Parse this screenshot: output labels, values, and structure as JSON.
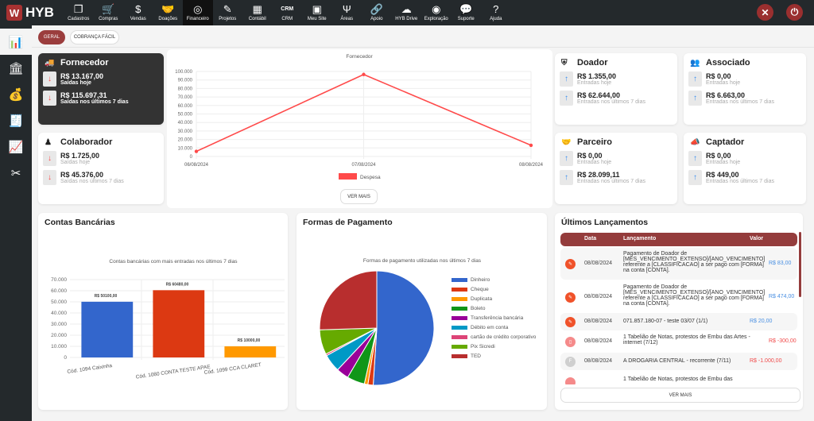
{
  "app": {
    "logo": "HYB"
  },
  "nav": [
    {
      "label": "Cadastros",
      "icon": "copy-icon",
      "glyph": "❐"
    },
    {
      "label": "Compras",
      "icon": "cart-icon",
      "glyph": "🛒"
    },
    {
      "label": "Vendas",
      "icon": "dollar-icon",
      "glyph": "$"
    },
    {
      "label": "Doações",
      "icon": "handshake-icon",
      "glyph": "🤝"
    },
    {
      "label": "Financeiro",
      "icon": "target-gear-icon",
      "glyph": "◎",
      "active": true
    },
    {
      "label": "Projetos",
      "icon": "pencil-icon",
      "glyph": "✎"
    },
    {
      "label": "Contábil",
      "icon": "calculator-icon",
      "glyph": "▦"
    },
    {
      "label": "CRM",
      "icon": "crm-icon",
      "glyph": "CRM"
    },
    {
      "label": "Meu Site",
      "icon": "monitor-icon",
      "glyph": "▣"
    },
    {
      "label": "Áreas",
      "icon": "areas-icon",
      "glyph": "Ψ"
    },
    {
      "label": "Apoio",
      "icon": "link-icon",
      "glyph": "🔗"
    },
    {
      "label": "HYB Drive",
      "icon": "cloud-upload-icon",
      "glyph": "☁"
    },
    {
      "label": "Exploração",
      "icon": "bullseye-icon",
      "glyph": "◉"
    },
    {
      "label": "Suporte",
      "icon": "chat-icon",
      "glyph": "💬"
    },
    {
      "label": "Ajuda",
      "icon": "question-icon",
      "glyph": "?"
    }
  ],
  "tabs": {
    "geral": "GERAL",
    "cobranca": "COBRANÇA FÁCIL"
  },
  "cards": {
    "fornecedor": {
      "title": "Fornecedor",
      "a1": "R$ 13.167,00",
      "l1": "Saídas hoje",
      "a2": "R$ 115.697,31",
      "l2": "Saídas nos últimos 7 dias"
    },
    "colaborador": {
      "title": "Colaborador",
      "a1": "R$ 1.725,00",
      "l1": "Saídas hoje",
      "a2": "R$ 45.376,00",
      "l2": "Saídas nos últimos 7 dias"
    },
    "doador": {
      "title": "Doador",
      "a1": "R$ 1.355,00",
      "l1": "Entradas hoje",
      "a2": "R$ 62.644,00",
      "l2": "Entradas nos últimos 7 dias"
    },
    "associado": {
      "title": "Associado",
      "a1": "R$ 0,00",
      "l1": "Entradas hoje",
      "a2": "R$ 6.663,00",
      "l2": "Entradas nos últimos 7 dias"
    },
    "parceiro": {
      "title": "Parceiro",
      "a1": "R$ 0,00",
      "l1": "Entradas hoje",
      "a2": "R$ 28.099,11",
      "l2": "Entradas nos últimos 7 dias"
    },
    "captador": {
      "title": "Captador",
      "a1": "R$ 0,00",
      "l1": "Entradas hoje",
      "a2": "R$ 449,00",
      "l2": "Entradas nos últimos 7 dias"
    }
  },
  "ver_mais": "VER MAIS",
  "panels": {
    "contas": "Contas Bancárias",
    "formas": "Formas de Pagamento",
    "ultimos": "Últimos Lançamentos"
  },
  "chart_data": [
    {
      "type": "line",
      "title": "Fornecedor",
      "x": [
        "06/08/2024",
        "07/08/2024",
        "08/08/2024"
      ],
      "series": [
        {
          "name": "Despesa",
          "values": [
            6030,
            96500,
            13167
          ],
          "color": "#ff4a4a"
        }
      ],
      "ylim": [
        0,
        100000
      ],
      "yticks": [
        "0",
        "10.000",
        "20.000",
        "30.000",
        "40.000",
        "50.000",
        "60.000",
        "70.000",
        "80.000",
        "90.000",
        "100.000"
      ],
      "legend": "bottom",
      "grid": true
    },
    {
      "type": "bar",
      "title": "Contas bancárias com mais entradas nos últimos 7 dias",
      "categories": [
        "Cód. 1094 Caixinha",
        "Cód. 1080 CONTA TESTE APAE",
        "Cód. 1099 CCA CLARET"
      ],
      "values": [
        50100,
        60480,
        10000
      ],
      "labels": [
        "R$ 50100,00",
        "R$ 60480,00",
        "R$ 10000,00"
      ],
      "colors": [
        "#3366cc",
        "#dc3912",
        "#ff9900"
      ],
      "ylim": [
        0,
        70000
      ],
      "yticks": [
        "0",
        "10.000",
        "20.000",
        "30.000",
        "40.000",
        "50.000",
        "60.000",
        "70.000"
      ],
      "grid": true
    },
    {
      "type": "pie",
      "title": "Formas de pagamento utilizadas nos últimos 7 dias",
      "legend": "right",
      "slices": [
        {
          "name": "Dinheiro",
          "value": 51,
          "color": "#3366cc"
        },
        {
          "name": "Cheque",
          "value": 1.5,
          "color": "#dc3912"
        },
        {
          "name": "Duplicata",
          "value": 1,
          "color": "#ff9900"
        },
        {
          "name": "Boleto",
          "value": 5,
          "color": "#109618"
        },
        {
          "name": "Transferência bancária",
          "value": 3.5,
          "color": "#990099"
        },
        {
          "name": "Débito em conta",
          "value": 5,
          "color": "#0099c6"
        },
        {
          "name": "cartão de crédito corporativo",
          "value": 0.5,
          "color": "#dd4477"
        },
        {
          "name": "Pix Sicredi",
          "value": 7,
          "color": "#66aa00"
        },
        {
          "name": "TED",
          "value": 25.5,
          "color": "#b82e2e"
        }
      ]
    }
  ],
  "lancamentos": {
    "headers": [
      "Data",
      "Lançamento",
      "Valor"
    ],
    "rows": [
      {
        "date": "08/08/2024",
        "text": "Pagamento de Doador de [MES_VENCIMENTO_EXTENSO]/[ANO_VENCIMENTO] referente a [CLASSIFICACAO] a ser pago com [FORMA] na conta [CONTA].",
        "value": "R$ 83,00",
        "kind": "in",
        "dot": "#f0522a",
        "glyph": "✎"
      },
      {
        "date": "08/08/2024",
        "text": "Pagamento de Doador de [MES_VENCIMENTO_EXTENSO]/[ANO_VENCIMENTO] referente a [CLASSIFICACAO] a ser pago com [FORMA] na conta [CONTA].",
        "value": "R$ 474,00",
        "kind": "in",
        "dot": "#f0522a",
        "glyph": "✎"
      },
      {
        "date": "08/08/2024",
        "text": "071.857.180-07 - teste 03/07 (1/1)",
        "value": "R$ 20,00",
        "kind": "in",
        "dot": "#f0522a",
        "glyph": "✎"
      },
      {
        "date": "08/08/2024",
        "text": "1 Tabelião de Notas, protestos de Embu das Artes - internet (7/12)",
        "value": "R$ -300,00",
        "kind": "out",
        "dot": "#f58a8a",
        "glyph": "▯"
      },
      {
        "date": "08/08/2024",
        "text": "A DROGARIA CENTRAL - recorrente (7/11)",
        "value": "R$ -1.000,00",
        "kind": "out",
        "dot": "#cfcfcf",
        "glyph": "F"
      },
      {
        "date": "",
        "text": "1 Tabelião de Notas, protestos de Embu das",
        "value": "",
        "kind": "out",
        "dot": "#f58a8a",
        "glyph": ""
      }
    ]
  }
}
